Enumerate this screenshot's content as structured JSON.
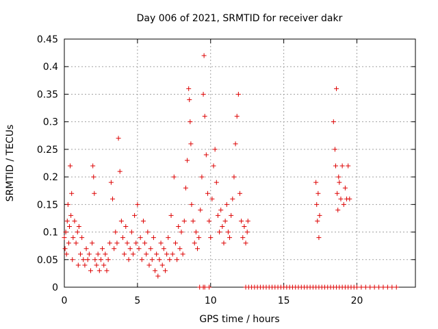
{
  "chart_data": {
    "type": "scatter",
    "title": "Day 006 of 2021, SRMTID for receiver dakr",
    "xlabel": "GPS time / hours",
    "ylabel": "SRMTID / TECUs",
    "xlim": [
      0,
      24
    ],
    "ylim": [
      0,
      0.45
    ],
    "xticks": [
      "0",
      "5",
      "10",
      "15",
      "20"
    ],
    "xtick_values": [
      0,
      5,
      10,
      15,
      20
    ],
    "yticks": [
      "0",
      "0.05",
      "0.1",
      "0.15",
      "0.2",
      "0.25",
      "0.3",
      "0.35",
      "0.4",
      "0.45"
    ],
    "ytick_values": [
      0,
      0.05,
      0.1,
      0.15,
      0.2,
      0.25,
      0.3,
      0.35,
      0.4,
      0.45
    ],
    "grid": true,
    "marker": "+",
    "color": "#dd0000",
    "series": [
      {
        "name": "SRMTID",
        "points": [
          [
            0.0,
            0.09
          ],
          [
            0.05,
            0.07
          ],
          [
            0.1,
            0.1
          ],
          [
            0.15,
            0.06
          ],
          [
            0.2,
            0.12
          ],
          [
            0.25,
            0.15
          ],
          [
            0.3,
            0.08
          ],
          [
            0.35,
            0.11
          ],
          [
            0.4,
            0.22
          ],
          [
            0.45,
            0.13
          ],
          [
            0.5,
            0.17
          ],
          [
            0.55,
            0.05
          ],
          [
            0.6,
            0.09
          ],
          [
            0.7,
            0.12
          ],
          [
            0.8,
            0.08
          ],
          [
            0.9,
            0.1
          ],
          [
            0.95,
            0.04
          ],
          [
            1.0,
            0.11
          ],
          [
            1.1,
            0.06
          ],
          [
            1.2,
            0.09
          ],
          [
            1.3,
            0.05
          ],
          [
            1.4,
            0.04
          ],
          [
            1.5,
            0.07
          ],
          [
            1.6,
            0.05
          ],
          [
            1.7,
            0.06
          ],
          [
            1.8,
            0.03
          ],
          [
            1.9,
            0.08
          ],
          [
            1.95,
            0.22
          ],
          [
            2.0,
            0.2
          ],
          [
            2.05,
            0.17
          ],
          [
            2.1,
            0.05
          ],
          [
            2.2,
            0.04
          ],
          [
            2.3,
            0.06
          ],
          [
            2.4,
            0.03
          ],
          [
            2.5,
            0.05
          ],
          [
            2.6,
            0.07
          ],
          [
            2.7,
            0.04
          ],
          [
            2.8,
            0.06
          ],
          [
            2.9,
            0.03
          ],
          [
            3.0,
            0.05
          ],
          [
            3.1,
            0.08
          ],
          [
            3.2,
            0.19
          ],
          [
            3.3,
            0.16
          ],
          [
            3.4,
            0.07
          ],
          [
            3.5,
            0.1
          ],
          [
            3.6,
            0.08
          ],
          [
            3.7,
            0.27
          ],
          [
            3.8,
            0.21
          ],
          [
            3.9,
            0.12
          ],
          [
            4.0,
            0.09
          ],
          [
            4.1,
            0.06
          ],
          [
            4.2,
            0.11
          ],
          [
            4.3,
            0.08
          ],
          [
            4.4,
            0.05
          ],
          [
            4.5,
            0.07
          ],
          [
            4.6,
            0.1
          ],
          [
            4.7,
            0.06
          ],
          [
            4.8,
            0.13
          ],
          [
            4.9,
            0.08
          ],
          [
            5.0,
            0.15
          ],
          [
            5.1,
            0.07
          ],
          [
            5.2,
            0.09
          ],
          [
            5.3,
            0.05
          ],
          [
            5.4,
            0.12
          ],
          [
            5.5,
            0.08
          ],
          [
            5.6,
            0.06
          ],
          [
            5.7,
            0.1
          ],
          [
            5.8,
            0.04
          ],
          [
            5.9,
            0.07
          ],
          [
            6.0,
            0.05
          ],
          [
            6.1,
            0.09
          ],
          [
            6.2,
            0.03
          ],
          [
            6.3,
            0.06
          ],
          [
            6.4,
            0.02
          ],
          [
            6.5,
            0.05
          ],
          [
            6.6,
            0.08
          ],
          [
            6.7,
            0.04
          ],
          [
            6.8,
            0.07
          ],
          [
            6.9,
            0.03
          ],
          [
            7.0,
            0.06
          ],
          [
            7.1,
            0.09
          ],
          [
            7.2,
            0.05
          ],
          [
            7.3,
            0.13
          ],
          [
            7.4,
            0.06
          ],
          [
            7.5,
            0.2
          ],
          [
            7.6,
            0.08
          ],
          [
            7.7,
            0.05
          ],
          [
            7.8,
            0.11
          ],
          [
            7.9,
            0.07
          ],
          [
            8.0,
            0.1
          ],
          [
            8.1,
            0.06
          ],
          [
            8.2,
            0.12
          ],
          [
            8.3,
            0.18
          ],
          [
            8.4,
            0.23
          ],
          [
            8.5,
            0.36
          ],
          [
            8.55,
            0.34
          ],
          [
            8.6,
            0.3
          ],
          [
            8.65,
            0.26
          ],
          [
            8.7,
            0.15
          ],
          [
            8.8,
            0.12
          ],
          [
            8.9,
            0.08
          ],
          [
            9.0,
            0.1
          ],
          [
            9.1,
            0.07
          ],
          [
            9.2,
            0.09
          ],
          [
            9.3,
            0.14
          ],
          [
            9.4,
            0.2
          ],
          [
            9.5,
            0.35
          ],
          [
            9.55,
            0.42
          ],
          [
            9.6,
            0.31
          ],
          [
            9.7,
            0.24
          ],
          [
            9.8,
            0.17
          ],
          [
            9.9,
            0.12
          ],
          [
            10.0,
            0.09
          ],
          [
            10.1,
            0.16
          ],
          [
            10.2,
            0.22
          ],
          [
            10.3,
            0.25
          ],
          [
            10.4,
            0.19
          ],
          [
            10.5,
            0.13
          ],
          [
            10.6,
            0.1
          ],
          [
            10.7,
            0.14
          ],
          [
            10.8,
            0.11
          ],
          [
            10.9,
            0.08
          ],
          [
            11.0,
            0.12
          ],
          [
            11.1,
            0.15
          ],
          [
            11.2,
            0.1
          ],
          [
            11.3,
            0.09
          ],
          [
            11.4,
            0.13
          ],
          [
            11.5,
            0.16
          ],
          [
            11.6,
            0.2
          ],
          [
            11.7,
            0.26
          ],
          [
            11.8,
            0.31
          ],
          [
            11.9,
            0.35
          ],
          [
            12.0,
            0.17
          ],
          [
            12.1,
            0.12
          ],
          [
            12.2,
            0.09
          ],
          [
            12.3,
            0.11
          ],
          [
            12.4,
            0.08
          ],
          [
            12.5,
            0.1
          ],
          [
            12.55,
            0.12
          ],
          [
            17.2,
            0.19
          ],
          [
            17.25,
            0.15
          ],
          [
            17.3,
            0.12
          ],
          [
            17.35,
            0.17
          ],
          [
            17.4,
            0.09
          ],
          [
            17.45,
            0.13
          ],
          [
            18.4,
            0.3
          ],
          [
            18.5,
            0.25
          ],
          [
            18.55,
            0.22
          ],
          [
            18.6,
            0.36
          ],
          [
            18.65,
            0.17
          ],
          [
            18.7,
            0.14
          ],
          [
            18.75,
            0.2
          ],
          [
            18.8,
            0.19
          ],
          [
            18.9,
            0.16
          ],
          [
            19.0,
            0.22
          ],
          [
            19.1,
            0.15
          ],
          [
            19.2,
            0.18
          ],
          [
            19.3,
            0.16
          ],
          [
            19.4,
            0.22
          ],
          [
            19.5,
            0.16
          ],
          [
            9.25,
            0.0
          ],
          [
            9.5,
            0.0
          ],
          [
            9.6,
            0.0
          ],
          [
            9.9,
            0.0
          ],
          [
            12.4,
            0.0
          ],
          [
            12.6,
            0.0
          ],
          [
            12.8,
            0.0
          ],
          [
            13.0,
            0.0
          ],
          [
            13.2,
            0.0
          ],
          [
            13.4,
            0.0
          ],
          [
            13.6,
            0.0
          ],
          [
            13.8,
            0.0
          ],
          [
            14.0,
            0.0
          ],
          [
            14.2,
            0.0
          ],
          [
            14.4,
            0.0
          ],
          [
            14.6,
            0.0
          ],
          [
            14.8,
            0.0
          ],
          [
            15.0,
            0.0
          ],
          [
            15.2,
            0.0
          ],
          [
            15.4,
            0.0
          ],
          [
            15.6,
            0.0
          ],
          [
            15.8,
            0.0
          ],
          [
            16.0,
            0.0
          ],
          [
            16.2,
            0.0
          ],
          [
            16.4,
            0.0
          ],
          [
            16.6,
            0.0
          ],
          [
            16.8,
            0.0
          ],
          [
            17.0,
            0.0
          ],
          [
            17.2,
            0.0
          ],
          [
            17.4,
            0.0
          ],
          [
            17.6,
            0.0
          ],
          [
            17.8,
            0.0
          ],
          [
            18.0,
            0.0
          ],
          [
            18.2,
            0.0
          ],
          [
            18.4,
            0.0
          ],
          [
            18.6,
            0.0
          ],
          [
            18.8,
            0.0
          ],
          [
            19.0,
            0.0
          ],
          [
            19.2,
            0.0
          ],
          [
            19.4,
            0.0
          ],
          [
            19.6,
            0.0
          ],
          [
            19.8,
            0.0
          ],
          [
            20.0,
            0.0
          ],
          [
            20.3,
            0.0
          ],
          [
            20.6,
            0.0
          ],
          [
            20.9,
            0.0
          ],
          [
            21.2,
            0.0
          ],
          [
            21.5,
            0.0
          ],
          [
            21.8,
            0.0
          ],
          [
            22.1,
            0.0
          ],
          [
            22.4,
            0.0
          ],
          [
            22.7,
            0.0
          ]
        ]
      }
    ]
  }
}
